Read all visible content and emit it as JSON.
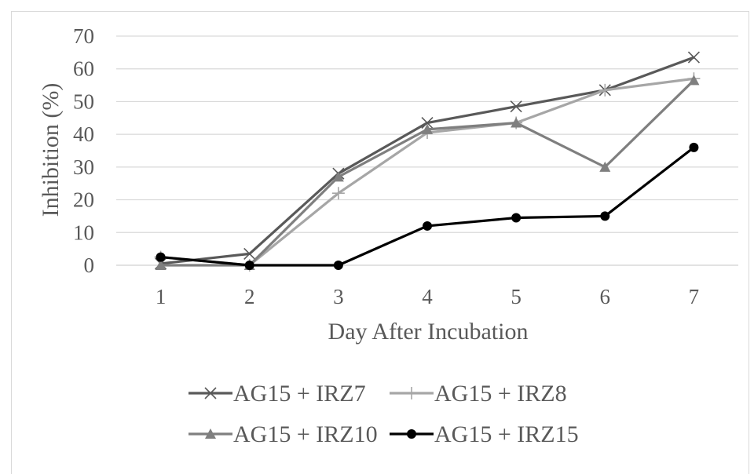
{
  "chart_data": {
    "type": "line",
    "title": "",
    "xlabel": "Day After Incubation",
    "ylabel": "Inhibition (%)",
    "categories": [
      "1",
      "2",
      "3",
      "4",
      "5",
      "6",
      "7"
    ],
    "ylim": [
      0,
      70
    ],
    "yticks": [
      "0",
      "10",
      "20",
      "30",
      "40",
      "50",
      "60",
      "70"
    ],
    "grid": true,
    "legend_position": "bottom",
    "series": [
      {
        "name": "AG15 + IRZ7",
        "values": [
          0.5,
          3.5,
          28,
          43.5,
          48.5,
          53.5,
          63.5
        ],
        "color": "#595959",
        "marker": "x"
      },
      {
        "name": "AG15 + IRZ8",
        "values": [
          2.5,
          0,
          22,
          40.5,
          43.5,
          53.5,
          57
        ],
        "color": "#a6a6a6",
        "marker": "plus"
      },
      {
        "name": "AG15 + IRZ10",
        "values": [
          0,
          0,
          27,
          41.5,
          43.5,
          30,
          56.5
        ],
        "color": "#7f7f7f",
        "marker": "triangle"
      },
      {
        "name": "AG15 + IRZ15",
        "values": [
          2.5,
          0,
          0,
          12,
          14.5,
          15,
          36
        ],
        "color": "#000000",
        "marker": "circle"
      }
    ]
  }
}
